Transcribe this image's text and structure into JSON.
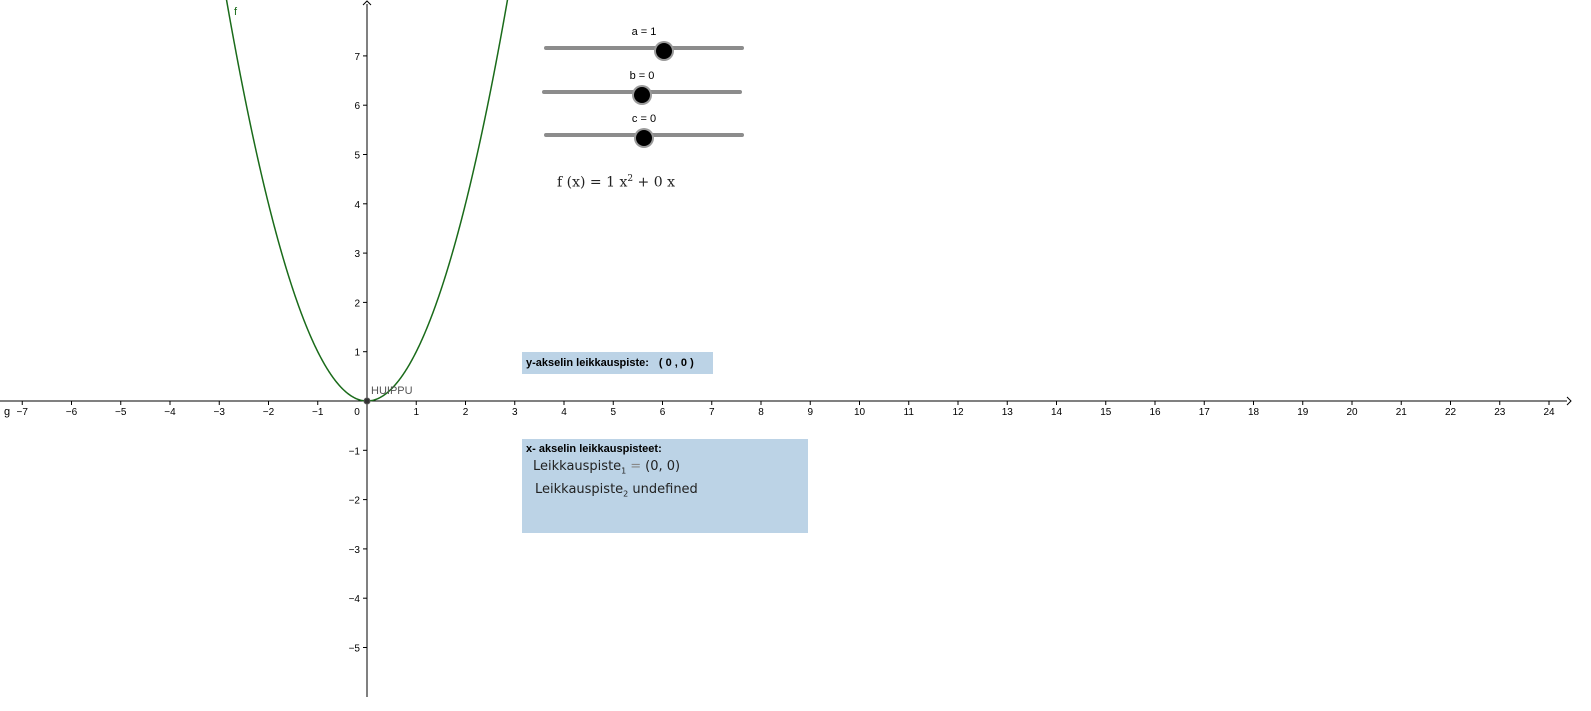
{
  "graph": {
    "x_ticks": [
      -7,
      -6,
      -5,
      -4,
      -3,
      -2,
      -1,
      0,
      1,
      2,
      3,
      4,
      5,
      6,
      7,
      8,
      9,
      10,
      11,
      12,
      13,
      14,
      15,
      16,
      17,
      18,
      19,
      20,
      21,
      22,
      23,
      24
    ],
    "y_ticks": [
      -5,
      -4,
      -3,
      -2,
      -1,
      1,
      2,
      3,
      4,
      5,
      6,
      7
    ],
    "curve_label": "f",
    "axis_name_left": "g",
    "vertex_label": "HUIPPU",
    "curve_color": "#1a6b1a"
  },
  "sliders": [
    {
      "label": "a = 1",
      "value": 1,
      "min": -5,
      "max": 5
    },
    {
      "label": "b = 0",
      "value": 0,
      "min": -5,
      "max": 5
    },
    {
      "label": "c = 0",
      "value": 0,
      "min": -5,
      "max": 5
    }
  ],
  "function_text": {
    "lhs": "f (x)  =  1 x",
    "exp": "2",
    "rhs": " + 0 x"
  },
  "y_intercept": {
    "label": "y-akselin leikkauspiste:",
    "value": "( 0 ,  0 )"
  },
  "x_intercepts": {
    "title": "x- akselin leikkauspisteet:",
    "row1_name": "Leikkauspiste",
    "row1_sub": "1",
    "row1_eq": "=",
    "row1_value": "(0, 0)",
    "row2_name": "Leikkauspiste",
    "row2_sub": "2",
    "row2_value": " undefined"
  },
  "colors": {
    "box_bg": "#bcd3e6",
    "axis": "#000000",
    "slider_track": "#8c8c8c"
  }
}
